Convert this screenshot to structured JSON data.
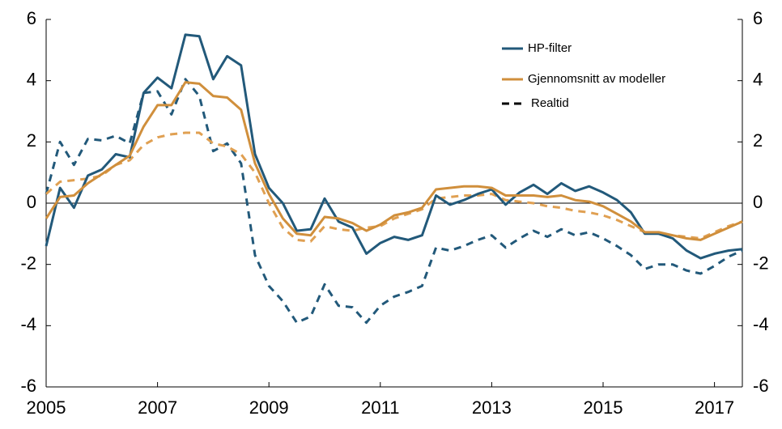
{
  "chart_data": {
    "type": "line",
    "x": [
      2005,
      2005.25,
      2005.5,
      2005.75,
      2006,
      2006.25,
      2006.5,
      2006.75,
      2007,
      2007.25,
      2007.5,
      2007.75,
      2008,
      2008.25,
      2008.5,
      2008.75,
      2009,
      2009.25,
      2009.5,
      2009.75,
      2010,
      2010.25,
      2010.5,
      2010.75,
      2011,
      2011.25,
      2011.5,
      2011.75,
      2012,
      2012.25,
      2012.5,
      2012.75,
      2013,
      2013.25,
      2013.5,
      2013.75,
      2014,
      2014.25,
      2014.5,
      2014.75,
      2015,
      2015.25,
      2015.5,
      2015.75,
      2016,
      2016.25,
      2016.5,
      2016.75,
      2017,
      2017.25,
      2017.5
    ],
    "series": [
      {
        "name": "HP-filter",
        "color": "#22597a",
        "values": [
          -1.4,
          0.5,
          -0.15,
          0.9,
          1.1,
          1.6,
          1.5,
          3.6,
          4.1,
          3.75,
          5.5,
          5.45,
          4.05,
          4.8,
          4.5,
          1.6,
          0.5,
          0.0,
          -0.9,
          -0.85,
          0.15,
          -0.6,
          -0.8,
          -1.65,
          -1.3,
          -1.1,
          -1.2,
          -1.05,
          0.25,
          -0.05,
          0.1,
          0.3,
          0.45,
          -0.05,
          0.35,
          0.6,
          0.3,
          0.65,
          0.4,
          0.55,
          0.35,
          0.1,
          -0.3,
          -1.0,
          -1.0,
          -1.15,
          -1.55,
          -1.8,
          -1.65,
          -1.55,
          -1.5
        ]
      },
      {
        "name": "Gjennomsnitt av modeller",
        "color": "#d08f3c",
        "values": [
          -0.5,
          0.2,
          0.25,
          0.65,
          0.95,
          1.25,
          1.55,
          2.5,
          3.2,
          3.2,
          3.95,
          3.9,
          3.5,
          3.45,
          3.05,
          1.3,
          0.3,
          -0.5,
          -1.0,
          -1.05,
          -0.45,
          -0.5,
          -0.65,
          -0.9,
          -0.7,
          -0.4,
          -0.3,
          -0.15,
          0.45,
          0.5,
          0.55,
          0.55,
          0.5,
          0.25,
          0.25,
          0.25,
          0.2,
          0.25,
          0.1,
          0.05,
          -0.1,
          -0.35,
          -0.6,
          -0.95,
          -0.95,
          -1.05,
          -1.15,
          -1.2,
          -1.0,
          -0.8,
          -0.6
        ]
      }
    ],
    "realtime": {
      "name": "Realtid",
      "legend_color": "#000000",
      "series": [
        {
          "color": "#22597a",
          "values": [
            0.3,
            2.0,
            1.25,
            2.1,
            2.05,
            2.2,
            1.95,
            3.6,
            3.65,
            2.9,
            4.05,
            3.5,
            1.7,
            1.95,
            1.3,
            -1.7,
            -2.7,
            -3.2,
            -3.9,
            -3.7,
            -2.65,
            -3.35,
            -3.4,
            -3.9,
            -3.35,
            -3.05,
            -2.9,
            -2.7,
            -1.45,
            -1.55,
            -1.4,
            -1.2,
            -1.05,
            -1.45,
            -1.15,
            -0.9,
            -1.1,
            -0.85,
            -1.05,
            -0.95,
            -1.15,
            -1.4,
            -1.7,
            -2.15,
            -2.0,
            -2.0,
            -2.2,
            -2.3,
            -2.05,
            -1.75,
            -1.55
          ]
        },
        {
          "color": "#e0a052",
          "values": [
            0.3,
            0.7,
            0.75,
            0.8,
            0.9,
            1.25,
            1.4,
            1.9,
            2.15,
            2.25,
            2.3,
            2.3,
            1.95,
            1.85,
            1.6,
            1.0,
            0.0,
            -0.8,
            -1.2,
            -1.25,
            -0.75,
            -0.85,
            -0.9,
            -0.8,
            -0.75,
            -0.5,
            -0.35,
            -0.2,
            0.15,
            0.2,
            0.25,
            0.25,
            0.3,
            0.1,
            0.05,
            0.0,
            -0.1,
            -0.15,
            -0.25,
            -0.3,
            -0.4,
            -0.55,
            -0.75,
            -0.95,
            -1.0,
            -1.05,
            -1.1,
            -1.15,
            -0.95,
            -0.75,
            -0.6
          ]
        }
      ]
    },
    "xlim": [
      2005,
      2017.5
    ],
    "xticks": [
      2005,
      2007,
      2009,
      2011,
      2013,
      2015,
      2017
    ],
    "ylim": [
      -6,
      6
    ],
    "yticks": [
      -6,
      -4,
      -2,
      0,
      2,
      4,
      6
    ],
    "y2lim": [
      -6,
      6
    ],
    "y2ticks": [
      -6,
      -4,
      -2,
      0,
      2,
      4,
      6
    ],
    "zero_line": true
  }
}
